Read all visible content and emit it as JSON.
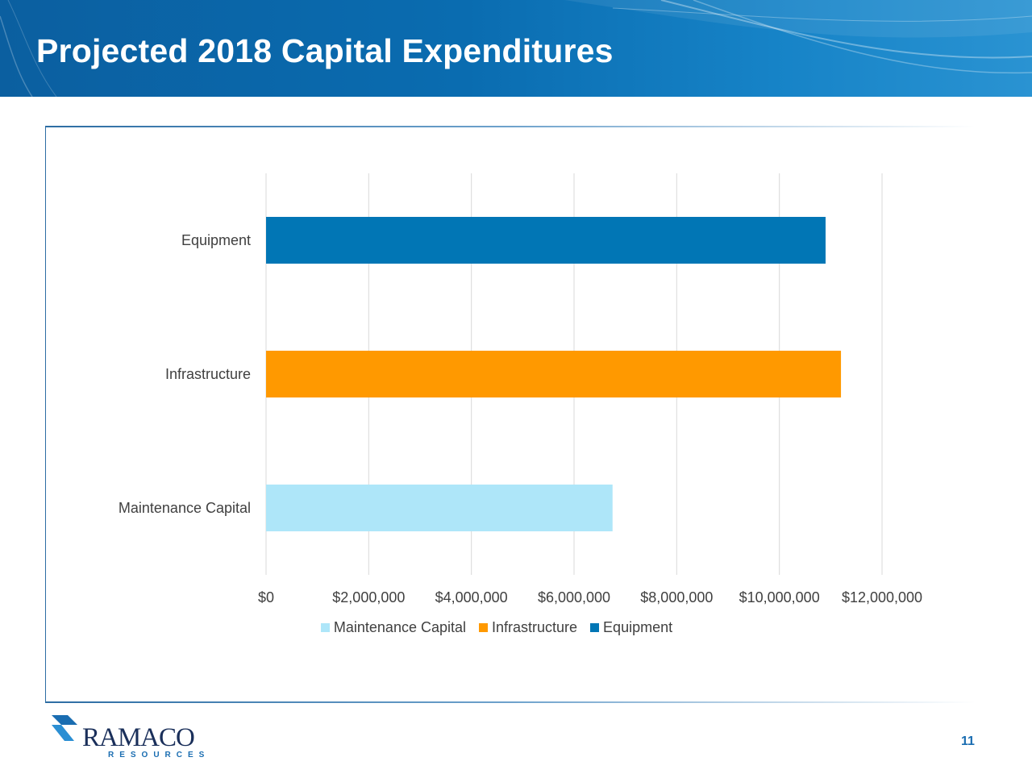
{
  "slide": {
    "title": "Projected 2018 Capital Expenditures",
    "page_number": "11"
  },
  "logo": {
    "name": "RAMACO",
    "subtitle": "RESOURCES"
  },
  "colors": {
    "header": "#0a6cb0",
    "maintenance": "#aee6f9",
    "infrastructure": "#ff9900",
    "equipment": "#0176b5",
    "grid": "#d9d9d9",
    "text": "#404040"
  },
  "chart_data": {
    "type": "bar",
    "orientation": "horizontal",
    "categories": [
      "Equipment",
      "Infrastructure",
      "Maintenance Capital"
    ],
    "values": [
      10900000,
      11200000,
      6750000
    ],
    "xlim": [
      0,
      12000000
    ],
    "ticks": [
      "$0",
      "$2,000,000",
      "$4,000,000",
      "$6,000,000",
      "$8,000,000",
      "$10,000,000",
      "$12,000,000"
    ],
    "tick_values": [
      0,
      2000000,
      4000000,
      6000000,
      8000000,
      10000000,
      12000000
    ],
    "grid": true,
    "legend": {
      "placement": "bottom",
      "entries": [
        "Maintenance Capital",
        "Infrastructure",
        "Equipment"
      ]
    }
  }
}
